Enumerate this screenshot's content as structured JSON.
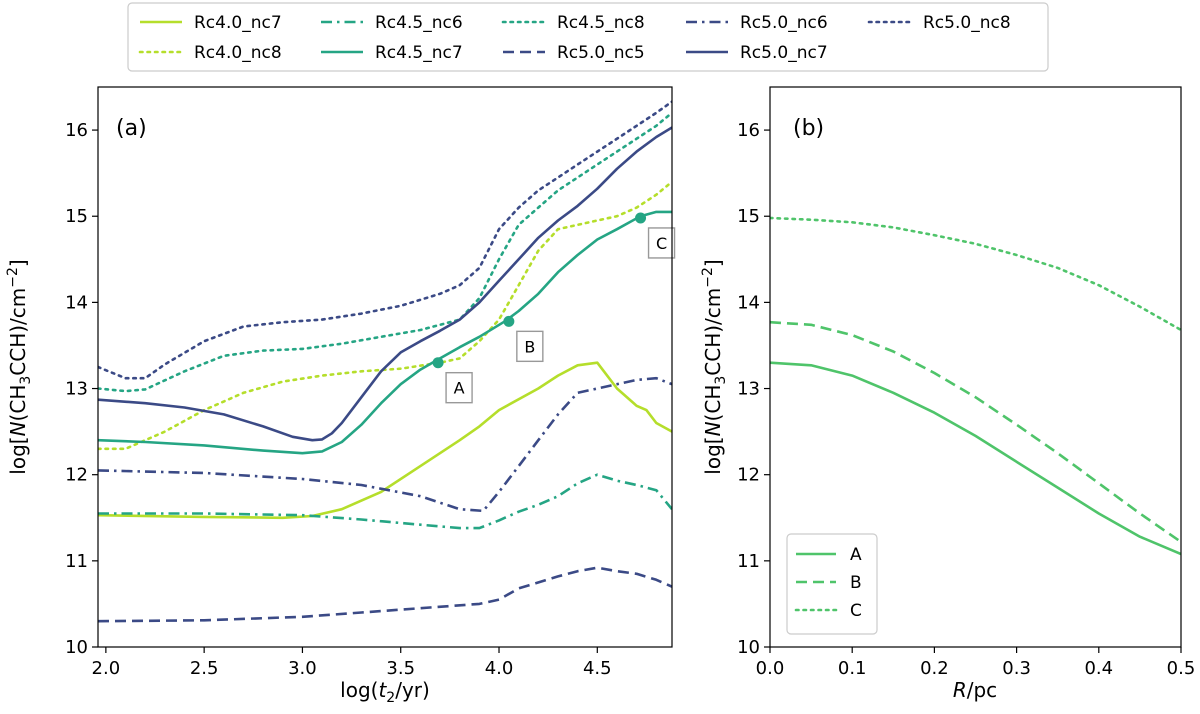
{
  "legend": {
    "entries": [
      {
        "label": "Rc4.0_nc7",
        "color": "#b5de2b",
        "dash": "solid"
      },
      {
        "label": "Rc4.0_nc8",
        "color": "#b5de2b",
        "dash": "dot"
      },
      {
        "label": "Rc4.5_nc6",
        "color": "#25a584",
        "dash": "dashdot"
      },
      {
        "label": "Rc4.5_nc7",
        "color": "#25a584",
        "dash": "solid"
      },
      {
        "label": "Rc4.5_nc8",
        "color": "#25a584",
        "dash": "dot"
      },
      {
        "label": "Rc5.0_nc5",
        "color": "#3b4a86",
        "dash": "dash"
      },
      {
        "label": "Rc5.0_nc6",
        "color": "#3b4a86",
        "dash": "dashdot"
      },
      {
        "label": "Rc5.0_nc7",
        "color": "#3b4a86",
        "dash": "solid"
      },
      {
        "label": "Rc5.0_nc8",
        "color": "#3b4a86",
        "dash": "dot"
      }
    ]
  },
  "chart_data": [
    {
      "type": "line",
      "panel_label": "(a)",
      "xlabel_pre": "log(",
      "xlabel_var": "t",
      "xlabel_sub": "2",
      "xlabel_post": "/yr)",
      "ylabel_pre": "log[",
      "ylabel_var": "N",
      "ylabel_mid": "(CH",
      "ylabel_sub": "3",
      "ylabel_mid2": "CCH)/cm",
      "ylabel_sup": "−2",
      "ylabel_post": "]",
      "xlim": [
        1.96,
        4.88
      ],
      "ylim": [
        10,
        16.5
      ],
      "xticks": [
        2.0,
        2.5,
        3.0,
        3.5,
        4.0,
        4.5
      ],
      "xtick_labels": [
        "2.0",
        "2.5",
        "3.0",
        "3.5",
        "4.0",
        "4.5"
      ],
      "yticks": [
        10,
        11,
        12,
        13,
        14,
        15,
        16
      ],
      "ytick_labels": [
        "10",
        "11",
        "12",
        "13",
        "14",
        "15",
        "16"
      ],
      "series": [
        {
          "name": "Rc4.0_nc7",
          "color": "#b5de2b",
          "dash": "solid",
          "x": [
            1.96,
            2.5,
            2.9,
            3.05,
            3.2,
            3.4,
            3.6,
            3.8,
            3.9,
            4.0,
            4.2,
            4.3,
            4.4,
            4.5,
            4.6,
            4.7,
            4.75,
            4.8,
            4.88
          ],
          "y": [
            11.53,
            11.51,
            11.5,
            11.52,
            11.6,
            11.8,
            12.1,
            12.4,
            12.56,
            12.75,
            13.0,
            13.15,
            13.27,
            13.3,
            13.0,
            12.8,
            12.75,
            12.6,
            12.5
          ]
        },
        {
          "name": "Rc4.0_nc8",
          "color": "#b5de2b",
          "dash": "dot",
          "x": [
            1.96,
            2.1,
            2.3,
            2.5,
            2.7,
            2.9,
            3.1,
            3.3,
            3.5,
            3.7,
            3.8,
            3.9,
            4.0,
            4.1,
            4.2,
            4.3,
            4.5,
            4.6,
            4.7,
            4.8,
            4.88
          ],
          "y": [
            12.3,
            12.3,
            12.5,
            12.75,
            12.95,
            13.08,
            13.15,
            13.2,
            13.23,
            13.3,
            13.35,
            13.55,
            13.8,
            14.2,
            14.6,
            14.85,
            14.95,
            15.0,
            15.1,
            15.25,
            15.4
          ]
        },
        {
          "name": "Rc4.5_nc6",
          "color": "#25a584",
          "dash": "dashdot",
          "x": [
            1.96,
            2.5,
            3.0,
            3.3,
            3.6,
            3.8,
            3.9,
            4.0,
            4.1,
            4.2,
            4.3,
            4.4,
            4.5,
            4.6,
            4.7,
            4.8,
            4.88
          ],
          "y": [
            11.55,
            11.55,
            11.53,
            11.48,
            11.42,
            11.38,
            11.38,
            11.47,
            11.57,
            11.65,
            11.75,
            11.9,
            12.0,
            11.93,
            11.88,
            11.82,
            11.6
          ]
        },
        {
          "name": "Rc4.5_nc7",
          "color": "#25a584",
          "dash": "solid",
          "x": [
            1.96,
            2.2,
            2.5,
            2.8,
            3.0,
            3.1,
            3.2,
            3.3,
            3.4,
            3.5,
            3.6,
            3.7,
            3.8,
            3.9,
            4.03,
            4.1,
            4.2,
            4.3,
            4.4,
            4.5,
            4.6,
            4.72,
            4.8,
            4.88
          ],
          "y": [
            12.4,
            12.38,
            12.34,
            12.28,
            12.25,
            12.27,
            12.38,
            12.58,
            12.83,
            13.05,
            13.22,
            13.35,
            13.48,
            13.6,
            13.78,
            13.9,
            14.1,
            14.35,
            14.55,
            14.73,
            14.85,
            15.0,
            15.05,
            15.05
          ]
        },
        {
          "name": "Rc4.5_nc8",
          "color": "#25a584",
          "dash": "dot",
          "x": [
            1.96,
            2.1,
            2.2,
            2.4,
            2.6,
            2.8,
            3.0,
            3.2,
            3.4,
            3.6,
            3.8,
            3.9,
            4.0,
            4.1,
            4.2,
            4.3,
            4.4,
            4.5,
            4.6,
            4.7,
            4.8,
            4.88
          ],
          "y": [
            13.0,
            12.97,
            12.99,
            13.2,
            13.38,
            13.44,
            13.46,
            13.52,
            13.6,
            13.68,
            13.8,
            14.05,
            14.5,
            14.9,
            15.1,
            15.3,
            15.45,
            15.6,
            15.75,
            15.9,
            16.05,
            16.2
          ]
        },
        {
          "name": "Rc5.0_nc5",
          "color": "#3b4a86",
          "dash": "dash",
          "x": [
            1.96,
            2.5,
            3.0,
            3.3,
            3.6,
            3.9,
            4.0,
            4.1,
            4.3,
            4.4,
            4.5,
            4.6,
            4.7,
            4.8,
            4.88
          ],
          "y": [
            10.3,
            10.31,
            10.35,
            10.4,
            10.45,
            10.5,
            10.55,
            10.68,
            10.82,
            10.88,
            10.92,
            10.88,
            10.85,
            10.78,
            10.7
          ]
        },
        {
          "name": "Rc5.0_nc6",
          "color": "#3b4a86",
          "dash": "dashdot",
          "x": [
            1.96,
            2.5,
            3.0,
            3.3,
            3.6,
            3.8,
            3.92,
            4.0,
            4.1,
            4.2,
            4.3,
            4.4,
            4.5,
            4.6,
            4.7,
            4.8,
            4.88
          ],
          "y": [
            12.05,
            12.02,
            11.95,
            11.88,
            11.75,
            11.6,
            11.58,
            11.8,
            12.1,
            12.4,
            12.7,
            12.95,
            13.0,
            13.05,
            13.1,
            13.12,
            13.05
          ]
        },
        {
          "name": "Rc5.0_nc7",
          "color": "#3b4a86",
          "dash": "solid",
          "x": [
            1.96,
            2.2,
            2.4,
            2.6,
            2.8,
            2.95,
            3.05,
            3.1,
            3.15,
            3.2,
            3.3,
            3.4,
            3.5,
            3.6,
            3.7,
            3.8,
            3.9,
            4.0,
            4.1,
            4.2,
            4.3,
            4.4,
            4.5,
            4.6,
            4.7,
            4.8,
            4.88
          ],
          "y": [
            12.87,
            12.83,
            12.78,
            12.7,
            12.56,
            12.44,
            12.4,
            12.41,
            12.48,
            12.6,
            12.9,
            13.2,
            13.42,
            13.55,
            13.67,
            13.8,
            14.0,
            14.25,
            14.5,
            14.75,
            14.95,
            15.12,
            15.32,
            15.55,
            15.75,
            15.92,
            16.03
          ]
        },
        {
          "name": "Rc5.0_nc8",
          "color": "#3b4a86",
          "dash": "dot",
          "x": [
            1.96,
            2.1,
            2.2,
            2.3,
            2.5,
            2.7,
            2.9,
            3.1,
            3.3,
            3.5,
            3.7,
            3.8,
            3.9,
            4.0,
            4.1,
            4.2,
            4.3,
            4.4,
            4.5,
            4.6,
            4.7,
            4.8,
            4.88
          ],
          "y": [
            13.25,
            13.12,
            13.12,
            13.28,
            13.55,
            13.72,
            13.77,
            13.8,
            13.87,
            13.96,
            14.1,
            14.2,
            14.4,
            14.85,
            15.1,
            15.3,
            15.45,
            15.6,
            15.75,
            15.9,
            16.05,
            16.2,
            16.33
          ]
        }
      ],
      "annotations": [
        {
          "label": "A",
          "x": 3.69,
          "y": 13.3,
          "color": "#25a584"
        },
        {
          "label": "B",
          "x": 4.05,
          "y": 13.78,
          "color": "#25a584"
        },
        {
          "label": "C",
          "x": 4.72,
          "y": 14.98,
          "color": "#25a584"
        }
      ]
    },
    {
      "type": "line",
      "panel_label": "(b)",
      "xlabel_var": "R",
      "xlabel_post": "/pc",
      "ylabel_pre": "log[",
      "ylabel_var": "N",
      "ylabel_mid": "(CH",
      "ylabel_sub": "3",
      "ylabel_mid2": "CCH)/cm",
      "ylabel_sup": "−2",
      "ylabel_post": "]",
      "xlim": [
        0.0,
        0.5
      ],
      "ylim": [
        10,
        16.5
      ],
      "xticks": [
        0.0,
        0.1,
        0.2,
        0.3,
        0.4,
        0.5
      ],
      "xtick_labels": [
        "0.0",
        "0.1",
        "0.2",
        "0.3",
        "0.4",
        "0.5"
      ],
      "yticks": [
        10,
        11,
        12,
        13,
        14,
        15,
        16
      ],
      "ytick_labels": [
        "10",
        "11",
        "12",
        "13",
        "14",
        "15",
        "16"
      ],
      "legend_position": "lower-left",
      "series": [
        {
          "name": "A",
          "color": "#4fc46a",
          "dash": "solid",
          "x": [
            0.0,
            0.05,
            0.1,
            0.15,
            0.2,
            0.25,
            0.3,
            0.35,
            0.4,
            0.45,
            0.5
          ],
          "y": [
            13.3,
            13.27,
            13.15,
            12.95,
            12.72,
            12.45,
            12.15,
            11.85,
            11.55,
            11.28,
            11.08
          ]
        },
        {
          "name": "B",
          "color": "#4fc46a",
          "dash": "dash",
          "x": [
            0.0,
            0.05,
            0.1,
            0.15,
            0.2,
            0.25,
            0.3,
            0.35,
            0.4,
            0.45,
            0.5
          ],
          "y": [
            13.77,
            13.74,
            13.62,
            13.43,
            13.18,
            12.9,
            12.58,
            12.25,
            11.9,
            11.55,
            11.22
          ]
        },
        {
          "name": "C",
          "color": "#4fc46a",
          "dash": "dot",
          "x": [
            0.0,
            0.05,
            0.1,
            0.15,
            0.2,
            0.25,
            0.3,
            0.35,
            0.4,
            0.45,
            0.5
          ],
          "y": [
            14.98,
            14.96,
            14.93,
            14.87,
            14.78,
            14.68,
            14.55,
            14.4,
            14.2,
            13.95,
            13.68
          ]
        }
      ]
    }
  ]
}
